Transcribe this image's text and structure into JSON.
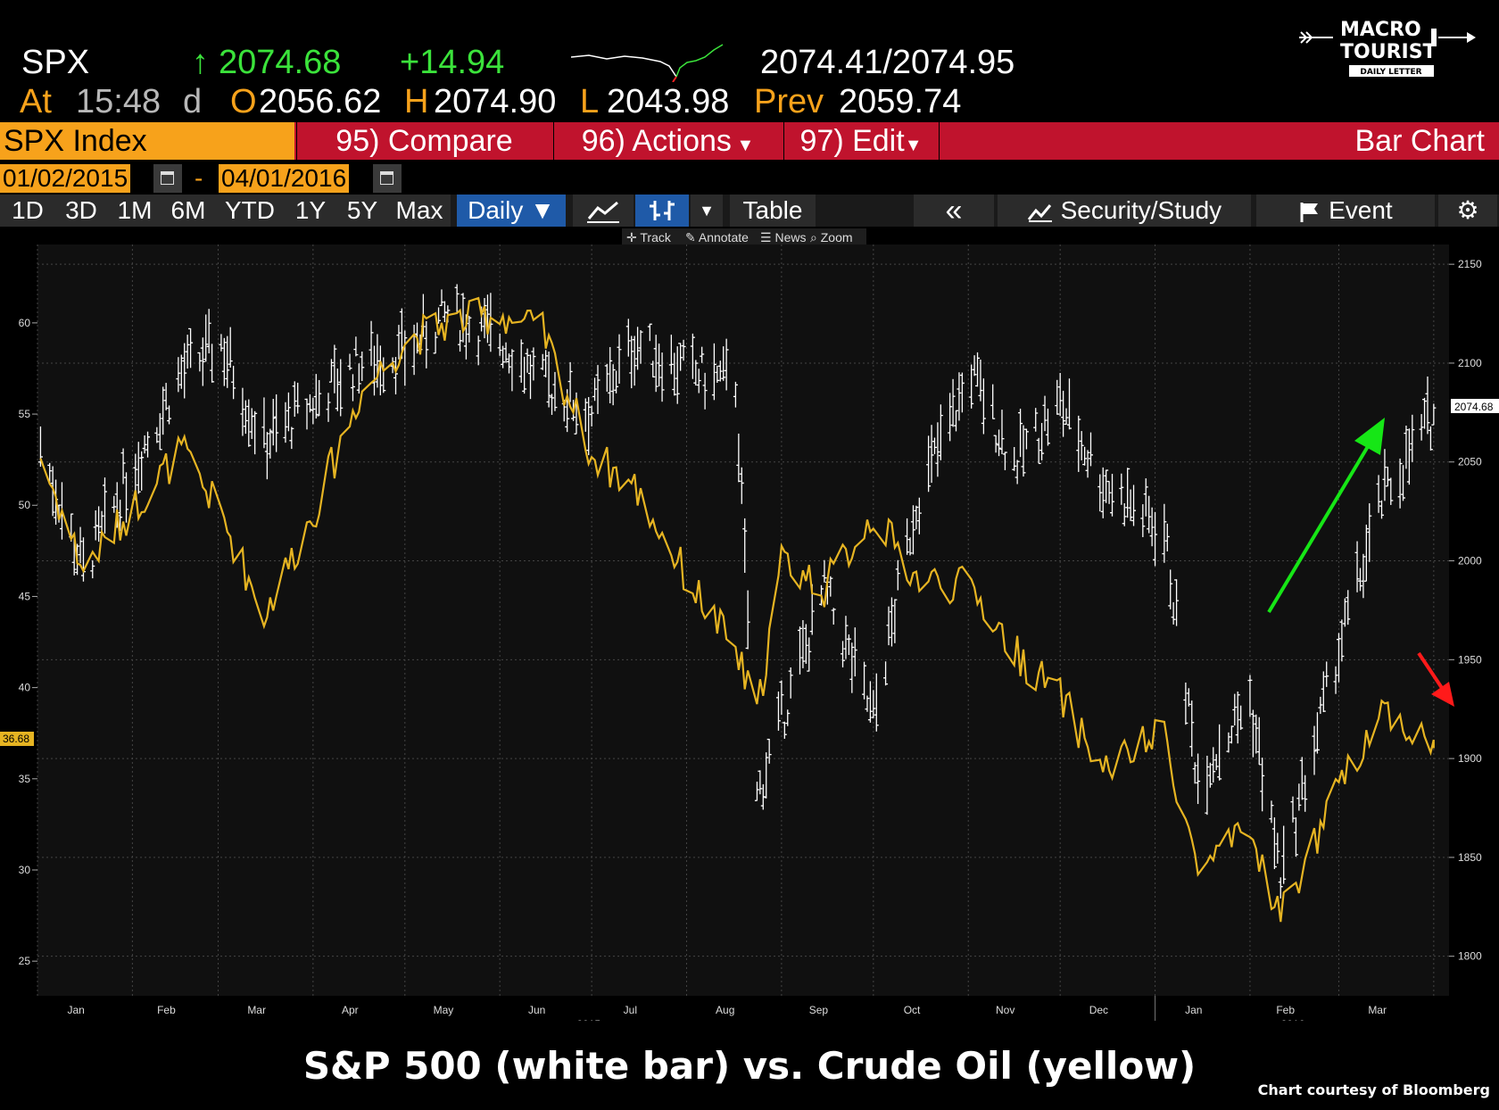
{
  "quote": {
    "ticker": "SPX",
    "arrow": "↑",
    "last": "2074.68",
    "change": "+14.94",
    "bid_ask": "2074.41/2074.95",
    "at_label": "At",
    "time": "15:48",
    "d_label": "d",
    "open_label": "O",
    "open": "2056.62",
    "high_label": "H",
    "high": "2074.90",
    "low_label": "L",
    "low": "2043.98",
    "prev_label": "Prev",
    "prev": "2059.74"
  },
  "logo": {
    "line1": "MACRO",
    "line2": "TOURIST",
    "line3": "DAILY LETTER"
  },
  "function_bar": {
    "security": "SPX Index",
    "compare": "95) Compare",
    "actions": "96) Actions",
    "edit": "97) Edit",
    "chart_type": "Bar Chart"
  },
  "date_range": {
    "start": "01/02/2015",
    "separator": "-",
    "end": "04/01/2016"
  },
  "toolbar": {
    "periods": [
      "1D",
      "3D",
      "1M",
      "6M",
      "YTD",
      "1Y",
      "5Y",
      "Max"
    ],
    "frequency": "Daily ▼",
    "table": "Table",
    "collapse": "«",
    "security_study": "Security/Study",
    "event": "Event"
  },
  "subtoolbar": {
    "track": "Track",
    "annotate": "Annotate",
    "news": "News",
    "zoom": "Zoom"
  },
  "chart_data": {
    "type": "line",
    "x_dates": [
      "2015-01-02",
      "2015-01-16",
      "2015-02-02",
      "2015-02-17",
      "2015-03-02",
      "2015-03-16",
      "2015-04-01",
      "2015-04-16",
      "2015-05-01",
      "2015-05-15",
      "2015-06-01",
      "2015-06-15",
      "2015-07-01",
      "2015-07-15",
      "2015-08-03",
      "2015-08-17",
      "2015-08-24",
      "2015-09-01",
      "2015-09-15",
      "2015-10-01",
      "2015-10-15",
      "2015-11-02",
      "2015-11-16",
      "2015-12-01",
      "2015-12-15",
      "2016-01-04",
      "2016-01-15",
      "2016-02-01",
      "2016-02-11",
      "2016-02-29",
      "2016-03-15",
      "2016-04-01"
    ],
    "series": [
      {
        "name": "S&P 500",
        "axis": "right",
        "style": "white bars",
        "values": [
          2058,
          1995,
          2050,
          2095,
          2110,
          2060,
          2080,
          2100,
          2105,
          2125,
          2112,
          2090,
          2075,
          2110,
          2095,
          2090,
          1880,
          1920,
          1985,
          1920,
          2030,
          2095,
          2050,
          2080,
          2040,
          2015,
          1890,
          1930,
          1840,
          1950,
          2030,
          2074.68
        ]
      },
      {
        "name": "Crude Oil",
        "axis": "left",
        "style": "yellow line",
        "values": [
          52.7,
          46.5,
          50,
          53,
          49.5,
          44,
          49.5,
          56,
          59,
          60,
          60.5,
          59.5,
          52.8,
          51,
          45.5,
          42,
          38.5,
          47,
          45.5,
          49.5,
          46,
          45.5,
          42,
          39.5,
          35.5,
          37.5,
          30,
          32,
          27.5,
          34,
          39,
          36.68
        ]
      }
    ],
    "x_ticks_month": [
      "Jan",
      "Feb",
      "Mar",
      "Apr",
      "May",
      "Jun",
      "Jul",
      "Aug",
      "Sep",
      "Oct",
      "Nov",
      "Dec",
      "Jan",
      "Feb",
      "Mar"
    ],
    "x_ticks_year": [
      "2015",
      "2016"
    ],
    "left_axis": {
      "ticks": [
        "60",
        "55",
        "50",
        "45",
        "40",
        "35",
        "30",
        "25"
      ],
      "ylim": [
        23.1,
        64.3
      ]
    },
    "right_axis": {
      "ticks": [
        "2150",
        "2100",
        "2050",
        "2000",
        "1950",
        "1900",
        "1850",
        "1800"
      ],
      "ylim": [
        1780,
        2160
      ]
    },
    "left_last_label": "36.68",
    "right_last_label": "2074.68",
    "grid": true,
    "annotations": [
      {
        "shape": "arrow",
        "color": "#16e616",
        "meaning": "up"
      },
      {
        "shape": "arrow",
        "color": "#ff1a1a",
        "meaning": "down"
      }
    ],
    "colors": {
      "spx": "#ffffff",
      "oil": "#e6b422",
      "background": "#101010"
    },
    "caption": "S&P 500 (white bar) vs. Crude Oil (yellow)",
    "credit": "Chart courtesy of Bloomberg"
  }
}
